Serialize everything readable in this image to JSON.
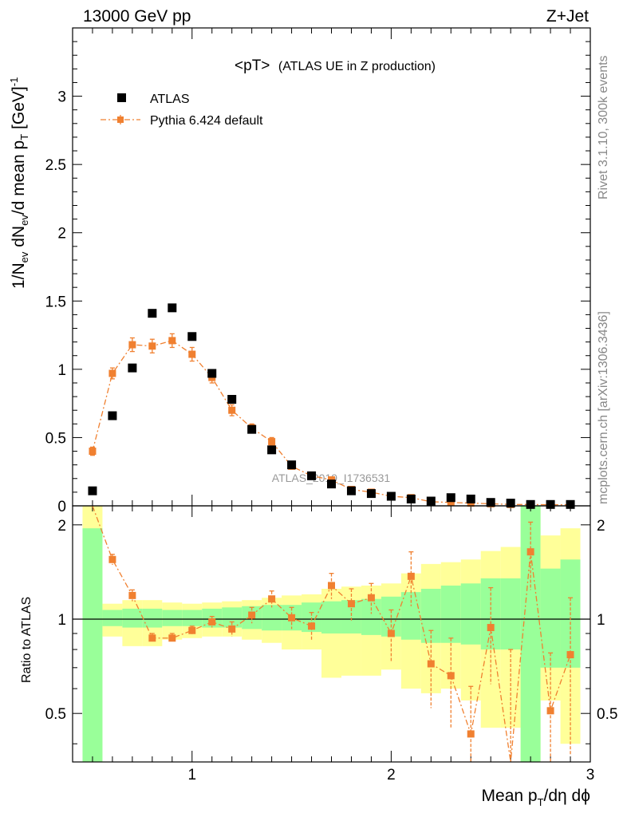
{
  "header": {
    "left_label": "13000 GeV pp",
    "right_label": "Z+Jet"
  },
  "side": {
    "rivet": "Rivet 3.1.10,  300k events",
    "mcplots": "mcplots.cern.ch [arXiv:1306.3436]"
  },
  "watermark": "ATLAS_2019_I1736531",
  "chart_data": {
    "type": "scatter",
    "title": "<pT>",
    "subtitle": "(ATLAS UE in Z production)",
    "ylabel": "1/N_ev dN_ev/d mean p_T [GeV]^-1",
    "ylabel_parts": {
      "a": "1/N",
      "b": "ev",
      "c": " dN",
      "d": "ev",
      "e": "/d mean p",
      "f": "T",
      "g": " [GeV]",
      "h": "-1"
    },
    "xlabel_parts": {
      "a": "Mean p",
      "b": "T",
      "c": "/dη dϕ"
    },
    "ratio_ylabel": "Ratio to ATLAS",
    "xlim": [
      0.4,
      3.0
    ],
    "ylim": [
      0,
      3.5
    ],
    "ratio_ylim": [
      0.35,
      2.3
    ],
    "x_ticks": [
      "1",
      "2",
      "3"
    ],
    "y_ticks": [
      "0",
      "0.5",
      "1",
      "1.5",
      "2",
      "2.5",
      "3"
    ],
    "ratio_ticks": [
      "0.5",
      "1",
      "2"
    ],
    "legend_position": "top-left",
    "x": [
      0.5,
      0.6,
      0.7,
      0.8,
      0.9,
      1.0,
      1.1,
      1.2,
      1.3,
      1.4,
      1.5,
      1.6,
      1.7,
      1.8,
      1.9,
      2.0,
      2.1,
      2.2,
      2.3,
      2.4,
      2.5,
      2.6,
      2.7,
      2.8,
      2.9
    ],
    "series": [
      {
        "name": "ATLAS",
        "color": "#000000",
        "marker": "square",
        "values": [
          0.11,
          0.66,
          1.01,
          1.41,
          1.45,
          1.24,
          0.97,
          0.78,
          0.56,
          0.41,
          0.3,
          0.22,
          0.16,
          0.11,
          0.09,
          0.07,
          0.05,
          0.035,
          0.06,
          0.05,
          0.025,
          0.02,
          0.01,
          0.01,
          0.01
        ]
      },
      {
        "name": "Pythia 6.424 default",
        "color": "#f08030",
        "marker": "square-line",
        "values": [
          0.4,
          0.97,
          1.18,
          1.17,
          1.21,
          1.11,
          0.94,
          0.7,
          0.57,
          0.47,
          0.29,
          0.22,
          0.19,
          0.12,
          0.1,
          0.07,
          0.06,
          0.03,
          0.025,
          0.02,
          0.015,
          0.01,
          0.01,
          0.008,
          0.008
        ],
        "errors": [
          0.03,
          0.04,
          0.05,
          0.05,
          0.05,
          0.05,
          0.04,
          0.04,
          0.03,
          0.03,
          0.02,
          0.02,
          0.02,
          0.01,
          0.01,
          0.01,
          0.01,
          0.01,
          0.01,
          0.01,
          0.01,
          0.005,
          0.005,
          0.005,
          0.005
        ]
      }
    ],
    "ratio": {
      "values": [
        3.5,
        1.55,
        1.19,
        0.87,
        0.87,
        0.92,
        0.98,
        0.93,
        1.03,
        1.16,
        1.01,
        0.95,
        1.28,
        1.12,
        1.17,
        0.9,
        1.37,
        0.72,
        0.66,
        0.43,
        0.94,
        0.2,
        1.64,
        0.51,
        0.77
      ],
      "errors": [
        0.0,
        0.06,
        0.05,
        0.03,
        0.03,
        0.03,
        0.04,
        0.05,
        0.06,
        0.07,
        0.08,
        0.1,
        0.12,
        0.13,
        0.13,
        0.17,
        0.27,
        0.2,
        0.21,
        0.18,
        0.32,
        0.6,
        0.4,
        0.27,
        0.4
      ],
      "band_inner": [
        [
          0.2,
          1.95
        ],
        [
          0.95,
          1.07
        ],
        [
          0.94,
          1.08
        ],
        [
          0.94,
          1.08
        ],
        [
          0.95,
          1.07
        ],
        [
          0.95,
          1.07
        ],
        [
          0.94,
          1.08
        ],
        [
          0.94,
          1.09
        ],
        [
          0.93,
          1.1
        ],
        [
          0.92,
          1.11
        ],
        [
          0.92,
          1.11
        ],
        [
          0.91,
          1.13
        ],
        [
          0.9,
          1.14
        ],
        [
          0.9,
          1.15
        ],
        [
          0.89,
          1.16
        ],
        [
          0.88,
          1.18
        ],
        [
          0.86,
          1.22
        ],
        [
          0.84,
          1.25
        ],
        [
          0.84,
          1.28
        ],
        [
          0.83,
          1.3
        ],
        [
          0.8,
          1.35
        ],
        [
          0.8,
          1.35
        ],
        [
          0.2,
          2.3
        ],
        [
          0.7,
          1.45
        ],
        [
          0.7,
          1.55
        ]
      ],
      "band_outer": [
        [
          0.2,
          2.3
        ],
        [
          0.88,
          1.12
        ],
        [
          0.82,
          1.15
        ],
        [
          0.82,
          1.15
        ],
        [
          0.86,
          1.13
        ],
        [
          0.87,
          1.12
        ],
        [
          0.88,
          1.13
        ],
        [
          0.88,
          1.14
        ],
        [
          0.86,
          1.15
        ],
        [
          0.84,
          1.17
        ],
        [
          0.8,
          1.19
        ],
        [
          0.8,
          1.2
        ],
        [
          0.65,
          1.25
        ],
        [
          0.66,
          1.27
        ],
        [
          0.66,
          1.28
        ],
        [
          0.69,
          1.3
        ],
        [
          0.6,
          1.4
        ],
        [
          0.58,
          1.5
        ],
        [
          0.6,
          1.52
        ],
        [
          0.55,
          1.55
        ],
        [
          0.45,
          1.65
        ],
        [
          0.45,
          1.7
        ],
        [
          0.2,
          2.3
        ],
        [
          0.55,
          1.85
        ],
        [
          0.4,
          1.95
        ]
      ]
    }
  }
}
